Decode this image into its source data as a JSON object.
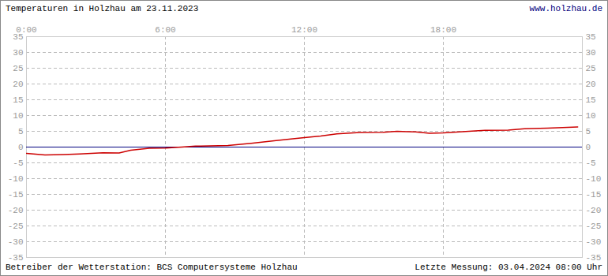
{
  "chart_data": {
    "type": "line",
    "title": "Temperaturen in Holzhau am 23.11.2023",
    "annotations": [
      "www.holzhau.de",
      "Betreiber der Wetterstation: BCS Computersysteme Holzhau",
      "Letzte Messung: 03.04.2024 08:00 Uhr"
    ],
    "x": [
      0,
      0.8,
      1.6,
      2.3,
      3.3,
      4,
      4.5,
      5.3,
      6,
      6.7,
      7.3,
      8.7,
      9.7,
      10.7,
      11.5,
      12,
      12.7,
      13.4,
      14.4,
      15.4,
      16,
      16.8,
      17.4,
      18,
      19.1,
      19.8,
      20.8,
      21.5,
      22.5,
      23.8
    ],
    "values": [
      -2,
      -2.5,
      -2.4,
      -2.2,
      -1.8,
      -1.9,
      -1,
      -0.4,
      -0.3,
      0,
      0.3,
      0.5,
      1.2,
      2,
      2.6,
      3,
      3.5,
      4.2,
      4.6,
      4.7,
      5,
      4.8,
      4.4,
      4.5,
      5,
      5.3,
      5.4,
      5.8,
      6,
      6.4
    ],
    "color": "#cc0000",
    "xlim": [
      0,
      24
    ],
    "xticks": [
      {
        "value": 0,
        "label": "0:00"
      },
      {
        "value": 6,
        "label": "6:00"
      },
      {
        "value": 12,
        "label": "12:00"
      },
      {
        "value": 18,
        "label": "18:00"
      }
    ],
    "ylim": [
      -35,
      35
    ],
    "yticks": [
      -35,
      -30,
      -25,
      -20,
      -15,
      -10,
      -5,
      0,
      5,
      10,
      15,
      20,
      25,
      30,
      35
    ],
    "grid": true
  }
}
